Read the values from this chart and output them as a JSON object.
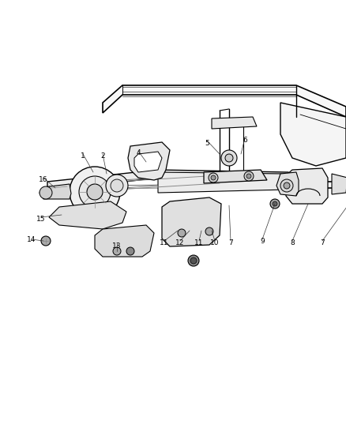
{
  "bg_color": "#ffffff",
  "line_color": "#000000",
  "label_color": "#000000",
  "fig_width": 4.38,
  "fig_height": 5.33,
  "dpi": 100,
  "part_labels": [
    [
      "1",
      105,
      198
    ],
    [
      "2",
      130,
      198
    ],
    [
      "4",
      175,
      194
    ],
    [
      "5",
      262,
      181
    ],
    [
      "6",
      310,
      178
    ],
    [
      "16",
      55,
      228
    ],
    [
      "15",
      52,
      278
    ],
    [
      "14",
      40,
      303
    ],
    [
      "13",
      148,
      312
    ],
    [
      "11",
      208,
      308
    ],
    [
      "12",
      228,
      308
    ],
    [
      "11",
      252,
      308
    ],
    [
      "10",
      272,
      308
    ],
    [
      "7",
      292,
      308
    ],
    [
      "9",
      332,
      306
    ],
    [
      "8",
      370,
      308
    ],
    [
      "7",
      408,
      308
    ]
  ]
}
